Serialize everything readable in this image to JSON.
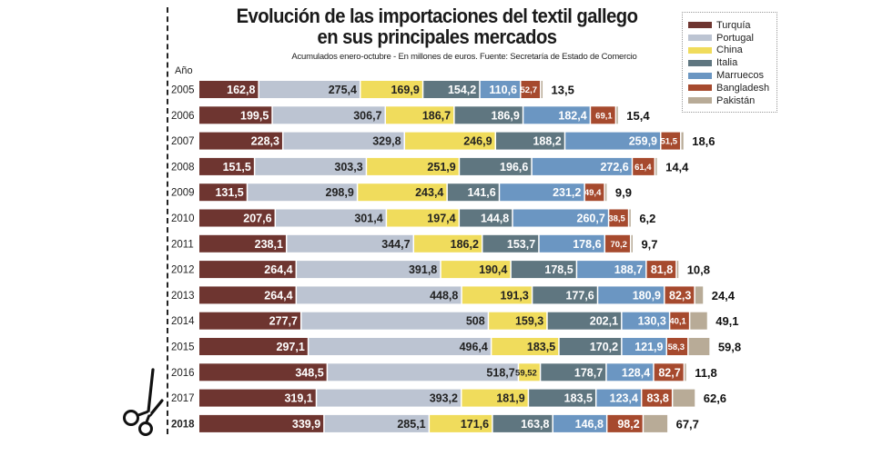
{
  "chart_data": {
    "type": "bar",
    "orientation": "horizontal",
    "stacked": true,
    "title": "Evolución de las importaciones del textil gallego en sus principales mercados",
    "subtitle": "Acumulados enero-octubre - En millones de euros. Fuente: Secretaría de Estado de Comercio",
    "ylabel": "Año",
    "xlabel": "",
    "grid": false,
    "legend_position": "top-right",
    "categories": [
      "2005",
      "2006",
      "2007",
      "2008",
      "2009",
      "2010",
      "2011",
      "2012",
      "2013",
      "2014",
      "2015",
      "2016",
      "2017",
      "2018"
    ],
    "bold_categories": [
      "2018"
    ],
    "series": [
      {
        "name": "Turquía",
        "color": "#6e3530",
        "label_color": "#ffffff",
        "values": [
          162.8,
          199.5,
          228.3,
          151.5,
          131.5,
          207.6,
          238.1,
          264.4,
          264.4,
          277.7,
          297.1,
          348.5,
          319.1,
          339.9
        ],
        "labels": [
          "162,8",
          "199,5",
          "228,3",
          "151,5",
          "131,5",
          "207,6",
          "238,1",
          "264,4",
          "264,4",
          "277,7",
          "297,1",
          "348,5",
          "319,1",
          "339,9"
        ]
      },
      {
        "name": "Portugal",
        "color": "#bcc4d2",
        "label_color": "#222222",
        "values": [
          275.4,
          306.7,
          329.8,
          303.3,
          298.9,
          301.4,
          344.7,
          391.8,
          448.8,
          508,
          496.4,
          518.7,
          393.2,
          285.1
        ],
        "labels": [
          "275,4",
          "306,7",
          "329,8",
          "303,3",
          "298,9",
          "301,4",
          "344,7",
          "391,8",
          "448,8",
          "508",
          "496,4",
          "518,7",
          "393,2",
          "285,1"
        ]
      },
      {
        "name": "China",
        "color": "#f0dc5c",
        "label_color": "#222222",
        "values": [
          169.9,
          186.7,
          246.9,
          251.9,
          243.4,
          197.4,
          186.2,
          190.4,
          191.3,
          159.3,
          183.5,
          59.52,
          181.9,
          171.6
        ],
        "labels": [
          "169,9",
          "186,7",
          "246,9",
          "251,9",
          "243,4",
          "197,4",
          "186,2",
          "190,4",
          "191,3",
          "159,3",
          "183,5",
          "59,52",
          "181,9",
          "171,6"
        ]
      },
      {
        "name": "Italia",
        "color": "#5f7680",
        "label_color": "#ffffff",
        "values": [
          154.2,
          186.9,
          188.2,
          196.6,
          141.6,
          144.8,
          153.7,
          178.5,
          177.6,
          202.1,
          170.2,
          178.7,
          183.5,
          163.8
        ],
        "labels": [
          "154,2",
          "186,9",
          "188,2",
          "196,6",
          "141,6",
          "144,8",
          "153,7",
          "178,5",
          "177,6",
          "202,1",
          "170,2",
          "178,7",
          "183,5",
          "163,8"
        ]
      },
      {
        "name": "Marruecos",
        "color": "#6b96c2",
        "label_color": "#ffffff",
        "values": [
          110.6,
          182.4,
          259.9,
          272.6,
          231.2,
          260.7,
          178.6,
          188.7,
          180.9,
          130.3,
          121.9,
          128.4,
          123.4,
          146.8
        ],
        "labels": [
          "110,6",
          "182,4",
          "259,9",
          "272,6",
          "231,2",
          "260,7",
          "178,6",
          "188,7",
          "180,9",
          "130,3",
          "121,9",
          "128,4",
          "123,4",
          "146,8"
        ]
      },
      {
        "name": "Bangladesh",
        "color": "#a64a2e",
        "label_color": "#ffffff",
        "values": [
          52.7,
          69.1,
          51.5,
          61.4,
          49.4,
          38.5,
          70.2,
          81.8,
          82.3,
          40.1,
          58.3,
          82.7,
          83.8,
          98.2
        ],
        "labels": [
          "52,7",
          "69,1",
          "51,5",
          "61,4",
          "49,4",
          "38,5",
          "70,2",
          "81,8",
          "82,3",
          "40,1",
          "58,3",
          "82,7",
          "83,8",
          "98,2"
        ]
      },
      {
        "name": "Pakistán",
        "color": "#b8ab97",
        "label_color": "#111111",
        "values": [
          13.5,
          15.4,
          18.6,
          14.4,
          9.9,
          6.2,
          9.7,
          10.8,
          24.4,
          49.1,
          59.8,
          11.8,
          62.6,
          67.7
        ],
        "labels": [
          "13,5",
          "15,4",
          "18,6",
          "14,4",
          "9,9",
          "6,2",
          "9,7",
          "10,8",
          "24,4",
          "49,1",
          "59,8",
          "11,8",
          "62,6",
          "67,7"
        ],
        "label_outside": true
      }
    ]
  },
  "header": {
    "title_line1": "Evolución de las importaciones del textil gallego",
    "title_line2": "en sus principales mercados",
    "subtitle": "Acumulados enero-octubre - En millones de euros. Fuente: Secretaría de Estado de Comercio"
  },
  "axis": {
    "year_label": "Año"
  },
  "legend": {
    "items": [
      {
        "label": "Turquía",
        "color": "#6e3530"
      },
      {
        "label": "Portugal",
        "color": "#bcc4d2"
      },
      {
        "label": "China",
        "color": "#f0dc5c"
      },
      {
        "label": "Italia",
        "color": "#5f7680"
      },
      {
        "label": "Marruecos",
        "color": "#6b96c2"
      },
      {
        "label": "Bangladesh",
        "color": "#a64a2e"
      },
      {
        "label": "Pakistán",
        "color": "#b8ab97"
      }
    ]
  },
  "decorations": {
    "cut_line_icon": "scissors-icon"
  }
}
